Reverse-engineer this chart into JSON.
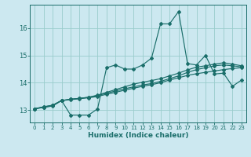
{
  "xlabel": "Humidex (Indice chaleur)",
  "bg_color": "#cce8f0",
  "line_color": "#1a6e6a",
  "grid_color": "#99cccc",
  "xlim": [
    -0.5,
    23.5
  ],
  "ylim": [
    12.55,
    16.85
  ],
  "yticks": [
    13,
    14,
    15,
    16
  ],
  "xticks": [
    0,
    1,
    2,
    3,
    4,
    5,
    6,
    7,
    8,
    9,
    10,
    11,
    12,
    13,
    14,
    15,
    16,
    17,
    18,
    19,
    20,
    21,
    22,
    23
  ],
  "series": [
    {
      "x": [
        0,
        1,
        2,
        3,
        4,
        5,
        6,
        7,
        8,
        9,
        10,
        11,
        12,
        13,
        14,
        15,
        16,
        17,
        18,
        19,
        20,
        21,
        22,
        23
      ],
      "y": [
        13.05,
        13.1,
        13.15,
        13.35,
        12.82,
        12.82,
        12.82,
        13.05,
        14.55,
        14.65,
        14.5,
        14.5,
        14.65,
        14.9,
        16.15,
        16.15,
        16.6,
        14.7,
        14.65,
        15.0,
        14.32,
        14.35,
        13.87,
        14.1
      ]
    },
    {
      "x": [
        0,
        1,
        2,
        3,
        4,
        5,
        6,
        7,
        8,
        9,
        10,
        11,
        12,
        13,
        14,
        15,
        16,
        17,
        18,
        19,
        20,
        21,
        22,
        23
      ],
      "y": [
        13.05,
        13.1,
        13.17,
        13.35,
        13.38,
        13.42,
        13.45,
        13.5,
        13.58,
        13.65,
        13.73,
        13.8,
        13.87,
        13.93,
        14.0,
        14.1,
        14.18,
        14.27,
        14.33,
        14.38,
        14.43,
        14.48,
        14.52,
        14.55
      ]
    },
    {
      "x": [
        0,
        1,
        2,
        3,
        4,
        5,
        6,
        7,
        8,
        9,
        10,
        11,
        12,
        13,
        14,
        15,
        16,
        17,
        18,
        19,
        20,
        21,
        22,
        23
      ],
      "y": [
        13.05,
        13.12,
        13.18,
        13.35,
        13.4,
        13.43,
        13.47,
        13.53,
        13.62,
        13.7,
        13.78,
        13.85,
        13.92,
        13.97,
        14.05,
        14.15,
        14.25,
        14.38,
        14.48,
        14.55,
        14.62,
        14.65,
        14.62,
        14.58
      ]
    },
    {
      "x": [
        0,
        1,
        2,
        3,
        4,
        5,
        6,
        7,
        8,
        9,
        10,
        11,
        12,
        13,
        14,
        15,
        16,
        17,
        18,
        19,
        20,
        21,
        22,
        23
      ],
      "y": [
        13.05,
        13.12,
        13.18,
        13.35,
        13.4,
        13.43,
        13.47,
        13.55,
        13.65,
        13.75,
        13.85,
        13.95,
        14.02,
        14.08,
        14.15,
        14.25,
        14.35,
        14.47,
        14.57,
        14.62,
        14.68,
        14.73,
        14.68,
        14.62
      ]
    }
  ]
}
